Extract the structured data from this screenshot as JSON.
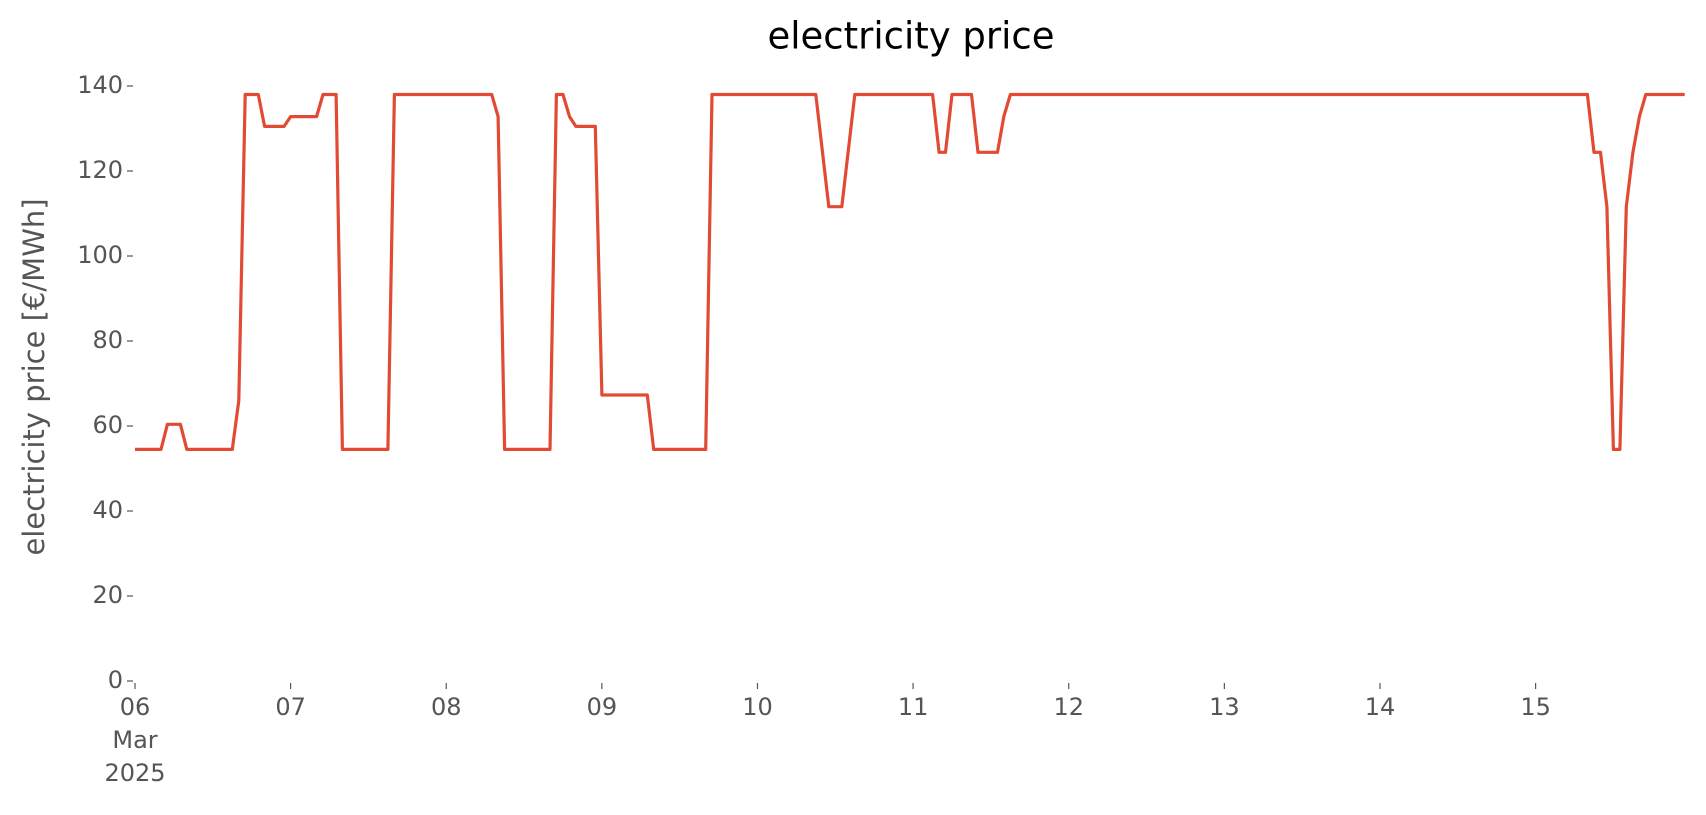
{
  "chart_data": {
    "type": "line",
    "title": "electricity price",
    "ylabel": "electricity price [€/MWh]",
    "x": [
      6.0,
      6.167,
      6.208,
      6.292,
      6.333,
      6.625,
      6.667,
      6.708,
      6.792,
      6.833,
      6.958,
      7.0,
      7.167,
      7.208,
      7.292,
      7.333,
      7.625,
      7.667,
      8.292,
      8.333,
      8.375,
      8.667,
      8.708,
      8.75,
      8.792,
      8.833,
      8.958,
      9.0,
      9.292,
      9.333,
      9.667,
      9.708,
      10.375,
      10.458,
      10.542,
      10.625,
      11.125,
      11.167,
      11.208,
      11.25,
      11.375,
      11.417,
      11.542,
      11.583,
      11.625,
      15.333,
      15.375,
      15.417,
      15.458,
      15.5,
      15.542,
      15.583,
      15.625,
      15.667,
      15.708,
      15.958
    ],
    "values": [
      54.5,
      54.5,
      60.4,
      60.4,
      54.5,
      54.5,
      66,
      138,
      138,
      130.5,
      130.5,
      132.8,
      132.8,
      138,
      138,
      54.5,
      54.5,
      138,
      138,
      132.8,
      54.5,
      54.5,
      138,
      138,
      132.8,
      130.5,
      130.5,
      67.3,
      67.3,
      54.5,
      54.5,
      138,
      138,
      111.6,
      111.6,
      138,
      138,
      124.4,
      124.4,
      138,
      138,
      124.4,
      124.4,
      132.8,
      138,
      138,
      124.4,
      124.4,
      111.6,
      54.5,
      54.5,
      111.6,
      124.4,
      132.8,
      138,
      138
    ],
    "color": "#E24A33",
    "xlim": [
      6,
      15.96
    ],
    "xticks": [
      {
        "value": 6,
        "label": "06\nMar\n2025"
      },
      {
        "value": 7,
        "label": "07"
      },
      {
        "value": 8,
        "label": "08"
      },
      {
        "value": 9,
        "label": "09"
      },
      10,
      11,
      12,
      13,
      14,
      15
    ],
    "ylim": [
      0,
      140
    ],
    "yticks": [
      0,
      20,
      40,
      60,
      80,
      100,
      120,
      140
    ],
    "grid": false
  }
}
